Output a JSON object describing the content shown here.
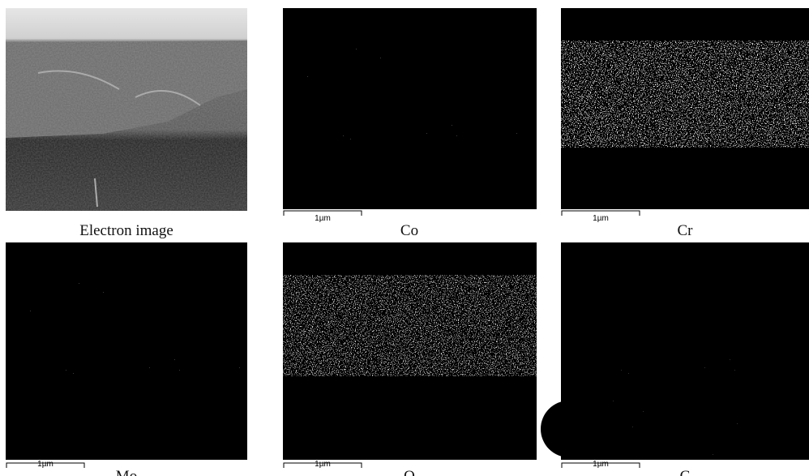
{
  "panels": [
    {
      "caption": "Electron image"
    },
    {
      "caption": "Co",
      "scale_bar": "1µm"
    },
    {
      "caption": "Cr",
      "scale_bar": "1µm"
    },
    {
      "caption": "Mo",
      "scale_bar": "1µm"
    },
    {
      "caption": "O",
      "scale_bar": "1µm"
    },
    {
      "caption": "C",
      "scale_bar": "1µm"
    }
  ]
}
